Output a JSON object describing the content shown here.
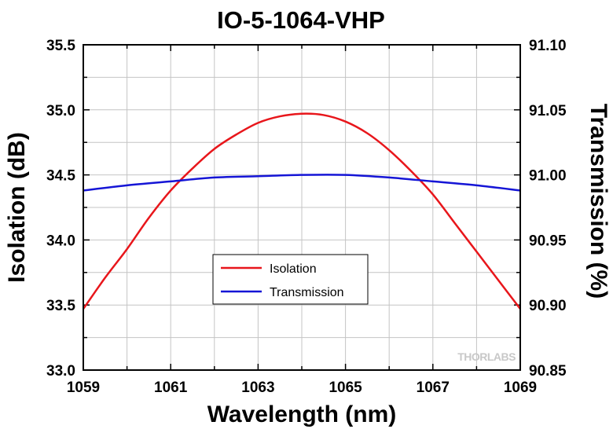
{
  "chart_data": {
    "type": "line",
    "title": "IO-5-1064-VHP",
    "xlabel": "Wavelength (nm)",
    "ylabel_left": "Isolation (dB)",
    "ylabel_right": "Transmission (%)",
    "xlim": [
      1059,
      1069
    ],
    "ylim_left": [
      33.0,
      35.5
    ],
    "ylim_right": [
      90.85,
      91.1
    ],
    "x_ticks": [
      "1059",
      "1061",
      "1063",
      "1065",
      "1067",
      "1069"
    ],
    "y_left_ticks": [
      "33.0",
      "33.5",
      "34.0",
      "34.5",
      "35.0",
      "35.5"
    ],
    "y_right_ticks": [
      "90.85",
      "90.90",
      "90.95",
      "91.00",
      "91.05",
      "91.10"
    ],
    "grid": true,
    "legend_placement": "center",
    "series": [
      {
        "name": "Isolation",
        "axis": "left",
        "color": "#e8161b",
        "x": [
          1059,
          1059.5,
          1060,
          1060.5,
          1061,
          1061.5,
          1062,
          1062.5,
          1063,
          1063.5,
          1064,
          1064.5,
          1065,
          1065.5,
          1066,
          1066.5,
          1067,
          1067.5,
          1068,
          1068.5,
          1069
        ],
        "values": [
          33.47,
          33.71,
          33.93,
          34.17,
          34.38,
          34.55,
          34.7,
          34.81,
          34.9,
          34.95,
          34.97,
          34.96,
          34.91,
          34.82,
          34.69,
          34.53,
          34.35,
          34.13,
          33.91,
          33.69,
          33.47
        ]
      },
      {
        "name": "Transmission",
        "axis": "right",
        "color": "#1515d6",
        "x": [
          1059,
          1060,
          1061,
          1062,
          1063,
          1064,
          1065,
          1066,
          1067,
          1068,
          1069
        ],
        "values": [
          90.988,
          90.992,
          90.995,
          90.998,
          90.999,
          91.0,
          91.0,
          90.998,
          90.995,
          90.992,
          90.988
        ]
      }
    ],
    "watermark": "THORLABS"
  }
}
